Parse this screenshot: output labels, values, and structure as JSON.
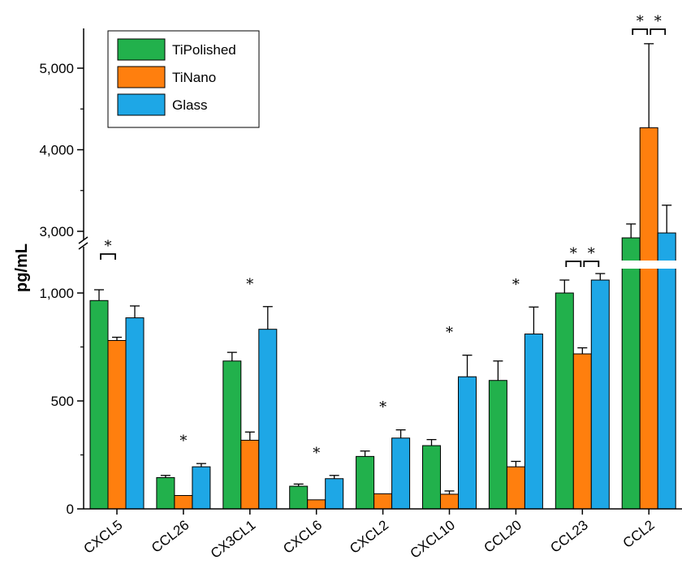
{
  "chart_data": {
    "type": "bar",
    "ylabel": "pg/mL",
    "y_axis_break": {
      "lower_range": [
        0,
        1100
      ],
      "upper_range": [
        2600,
        5400
      ]
    },
    "yticks_lower": [
      0,
      500,
      1000
    ],
    "yticks_upper": [
      3000,
      4000,
      5000
    ],
    "ytick_labels_lower": [
      "0",
      "500",
      "1,000"
    ],
    "ytick_labels_upper": [
      "3,000",
      "4,000",
      "5,000"
    ],
    "categories": [
      "CXCL5",
      "CCL26",
      "CX3CL1",
      "CXCL6",
      "CXCL2",
      "CXCL10",
      "CCL20",
      "CCL23",
      "CCL2"
    ],
    "series": [
      {
        "name": "TiPolished",
        "color": "#22b14c",
        "values": [
          965,
          145,
          685,
          105,
          243,
          293,
          595,
          1000,
          2920
        ],
        "errors": [
          50,
          10,
          40,
          10,
          25,
          28,
          90,
          60,
          170
        ]
      },
      {
        "name": "TiNano",
        "color": "#ff7f0e",
        "values": [
          780,
          62,
          318,
          42,
          70,
          68,
          195,
          718,
          4270
        ],
        "errors": [
          15,
          0,
          38,
          0,
          0,
          15,
          25,
          28,
          1030
        ]
      },
      {
        "name": "Glass",
        "color": "#1ea7e6",
        "values": [
          885,
          195,
          832,
          140,
          328,
          612,
          810,
          1060,
          2980
        ],
        "errors": [
          55,
          15,
          105,
          15,
          38,
          100,
          125,
          30,
          340
        ]
      }
    ],
    "legend_position": "top-left",
    "grid": false,
    "significance": [
      {
        "category": "CXCL5",
        "type": "bracket",
        "between": [
          "TiPolished",
          "TiNano"
        ],
        "label": "*"
      },
      {
        "category": "CCL26",
        "type": "star",
        "over": "TiNano",
        "label": "*"
      },
      {
        "category": "CX3CL1",
        "type": "star",
        "over": "TiNano",
        "label": "*"
      },
      {
        "category": "CXCL6",
        "type": "star",
        "over": "TiNano",
        "label": "*"
      },
      {
        "category": "CXCL2",
        "type": "star",
        "over": "TiNano",
        "label": "*"
      },
      {
        "category": "CXCL10",
        "type": "star",
        "over": "TiNano",
        "label": "*"
      },
      {
        "category": "CCL20",
        "type": "star",
        "over": "TiNano",
        "label": "*"
      },
      {
        "category": "CCL23",
        "type": "bracket",
        "between": [
          "TiPolished",
          "TiNano"
        ],
        "label": "*"
      },
      {
        "category": "CCL23",
        "type": "bracket",
        "between": [
          "TiNano",
          "Glass"
        ],
        "label": "*"
      },
      {
        "category": "CCL2",
        "type": "bracket",
        "between": [
          "TiPolished",
          "TiNano"
        ],
        "label": "*"
      },
      {
        "category": "CCL2",
        "type": "bracket",
        "between": [
          "TiNano",
          "Glass"
        ],
        "label": "*"
      }
    ]
  }
}
